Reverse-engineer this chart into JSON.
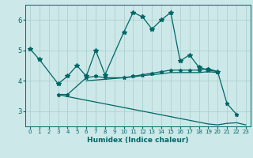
{
  "xlabel": "Humidex (Indice chaleur)",
  "bg_color": "#cce8e8",
  "grid_color": "#aacccc",
  "line_color": "#006666",
  "xlim": [
    -0.5,
    23.5
  ],
  "ylim": [
    2.5,
    6.5
  ],
  "yticks": [
    3,
    4,
    5,
    6
  ],
  "xticks": [
    0,
    1,
    2,
    3,
    4,
    5,
    6,
    7,
    8,
    9,
    10,
    11,
    12,
    13,
    14,
    15,
    16,
    17,
    18,
    19,
    20,
    21,
    22,
    23
  ],
  "s1_x": [
    0,
    1,
    3,
    4,
    5,
    6,
    7,
    8,
    10,
    11,
    12,
    13,
    14,
    15,
    16,
    17,
    18,
    19,
    20
  ],
  "s1_y": [
    5.05,
    4.7,
    3.9,
    4.15,
    4.5,
    4.15,
    5.0,
    4.2,
    5.6,
    6.25,
    6.1,
    5.7,
    6.0,
    6.25,
    4.65,
    4.85,
    4.45,
    4.35,
    4.3
  ],
  "s2_x": [
    3,
    4,
    6,
    7,
    8,
    10,
    11,
    12,
    13,
    14,
    15,
    16,
    17,
    18,
    19,
    20,
    21,
    22
  ],
  "s2_y": [
    3.55,
    3.55,
    4.1,
    4.15,
    4.1,
    4.1,
    4.15,
    4.2,
    4.25,
    4.3,
    4.35,
    4.35,
    4.35,
    4.35,
    4.4,
    4.3,
    3.25,
    2.9
  ],
  "s3_x": [
    6,
    8,
    10,
    11,
    12,
    13,
    14,
    15,
    16,
    17,
    18,
    19,
    20
  ],
  "s3_y": [
    4.0,
    4.05,
    4.1,
    4.13,
    4.17,
    4.2,
    4.23,
    4.27,
    4.27,
    4.27,
    4.27,
    4.3,
    4.27
  ],
  "s4_x": [
    3,
    4,
    5,
    6,
    7,
    8,
    9,
    10,
    11,
    12,
    13,
    14,
    15,
    16,
    17,
    18,
    19,
    20,
    21,
    22,
    23
  ],
  "s4_y": [
    3.55,
    3.48,
    3.42,
    3.36,
    3.3,
    3.24,
    3.18,
    3.12,
    3.06,
    3.0,
    2.94,
    2.88,
    2.82,
    2.76,
    2.7,
    2.64,
    2.58,
    2.55,
    2.6,
    2.62,
    2.55
  ]
}
